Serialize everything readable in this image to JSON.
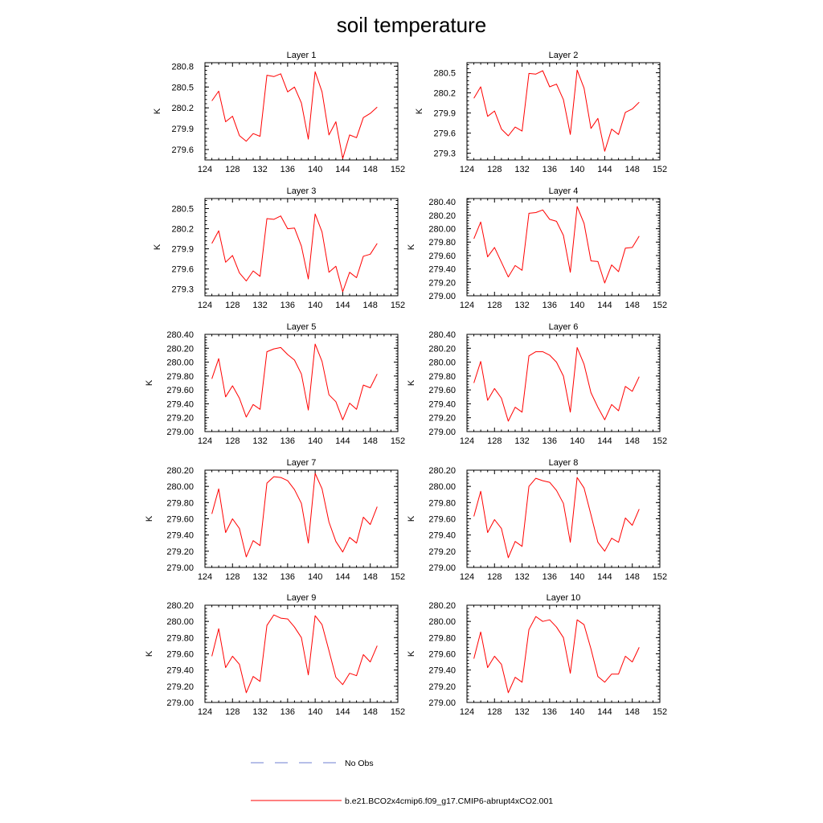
{
  "chart_data": {
    "type": "line",
    "title": "soil temperature",
    "xticks": [
      124,
      128,
      132,
      136,
      140,
      144,
      148,
      152
    ],
    "xlim": [
      124,
      152
    ],
    "x": [
      125,
      126,
      127,
      128,
      129,
      130,
      131,
      132,
      133,
      134,
      135,
      136,
      137,
      138,
      139,
      140,
      141,
      142,
      143,
      144,
      145,
      146,
      147,
      148,
      149
    ],
    "panels": [
      {
        "name": "Layer 1",
        "ylabel": "K",
        "ylim": [
          279.45,
          280.85
        ],
        "yticks": [
          279.6,
          279.9,
          280.2,
          280.5,
          280.8
        ],
        "ytick_labels": [
          "279.6",
          "279.9",
          "280.2",
          "280.5",
          "280.8"
        ],
        "values": [
          280.3,
          280.44,
          280.0,
          280.08,
          279.8,
          279.72,
          279.83,
          279.79,
          280.67,
          280.65,
          280.69,
          280.43,
          280.5,
          280.27,
          279.75,
          280.72,
          280.43,
          279.81,
          280.0,
          279.47,
          279.81,
          279.77,
          280.06,
          280.12,
          280.21
        ]
      },
      {
        "name": "Layer 2",
        "ylabel": "K",
        "ylim": [
          279.2,
          280.65
        ],
        "yticks": [
          279.3,
          279.6,
          279.9,
          280.2,
          280.5
        ],
        "ytick_labels": [
          "279.3",
          "279.6",
          "279.9",
          "280.2",
          "280.5"
        ],
        "values": [
          280.12,
          280.29,
          279.85,
          279.93,
          279.66,
          279.56,
          279.69,
          279.63,
          280.49,
          280.48,
          280.53,
          280.29,
          280.33,
          280.1,
          279.58,
          280.54,
          280.27,
          279.67,
          279.82,
          279.33,
          279.66,
          279.58,
          279.91,
          279.96,
          280.06
        ]
      },
      {
        "name": "Layer 3",
        "ylabel": "K",
        "ylim": [
          279.2,
          280.65
        ],
        "yticks": [
          279.3,
          279.6,
          279.9,
          280.2,
          280.5
        ],
        "ytick_labels": [
          "279.3",
          "279.6",
          "279.9",
          "280.2",
          "280.5"
        ],
        "values": [
          279.98,
          280.17,
          279.7,
          279.8,
          279.54,
          279.42,
          279.57,
          279.49,
          280.35,
          280.34,
          280.39,
          280.2,
          280.21,
          279.94,
          279.45,
          280.42,
          280.15,
          279.55,
          279.64,
          279.26,
          279.55,
          279.47,
          279.79,
          279.82,
          279.98
        ]
      },
      {
        "name": "Layer 4",
        "ylabel": "K",
        "ylim": [
          279.0,
          280.45
        ],
        "yticks": [
          279.0,
          279.2,
          279.4,
          279.6,
          279.8,
          280.0,
          280.2,
          280.4
        ],
        "ytick_labels": [
          "279.00",
          "279.20",
          "279.40",
          "279.60",
          "279.80",
          "280.00",
          "280.20",
          "280.40"
        ],
        "values": [
          279.85,
          280.1,
          279.58,
          279.72,
          279.5,
          279.28,
          279.45,
          279.38,
          280.23,
          280.24,
          280.28,
          280.14,
          280.11,
          279.9,
          279.35,
          280.33,
          280.08,
          279.52,
          279.51,
          279.19,
          279.46,
          279.36,
          279.71,
          279.72,
          279.89
        ]
      },
      {
        "name": "Layer 5",
        "ylabel": "K",
        "ylim": [
          279.0,
          280.4
        ],
        "yticks": [
          279.0,
          279.2,
          279.4,
          279.6,
          279.8,
          280.0,
          280.2,
          280.4
        ],
        "ytick_labels": [
          "279.00",
          "279.20",
          "279.40",
          "279.60",
          "279.80",
          "280.00",
          "280.20",
          "280.40"
        ],
        "values": [
          279.76,
          280.05,
          279.5,
          279.66,
          279.48,
          279.21,
          279.39,
          279.32,
          280.15,
          280.19,
          280.21,
          280.11,
          280.03,
          279.83,
          279.31,
          280.26,
          280.01,
          279.53,
          279.43,
          279.17,
          279.41,
          279.32,
          279.67,
          279.63,
          279.83
        ]
      },
      {
        "name": "Layer 6",
        "ylabel": "K",
        "ylim": [
          279.0,
          280.4
        ],
        "yticks": [
          279.0,
          279.2,
          279.4,
          279.6,
          279.8,
          280.0,
          280.2,
          280.4
        ],
        "ytick_labels": [
          "279.00",
          "279.20",
          "279.40",
          "279.60",
          "279.80",
          "280.00",
          "280.20",
          "280.40"
        ],
        "values": [
          279.7,
          280.01,
          279.45,
          279.62,
          279.48,
          279.15,
          279.35,
          279.28,
          280.09,
          280.15,
          280.15,
          280.1,
          280.0,
          279.8,
          279.28,
          280.21,
          279.97,
          279.56,
          279.35,
          279.17,
          279.39,
          279.3,
          279.65,
          279.58,
          279.79
        ]
      },
      {
        "name": "Layer 7",
        "ylabel": "K",
        "ylim": [
          279.0,
          280.2
        ],
        "yticks": [
          279.0,
          279.2,
          279.4,
          279.6,
          279.8,
          280.0,
          280.2
        ],
        "ytick_labels": [
          "279.00",
          "279.20",
          "279.40",
          "279.60",
          "279.80",
          "280.00",
          "280.20"
        ],
        "values": [
          279.66,
          279.97,
          279.43,
          279.6,
          279.48,
          279.13,
          279.33,
          279.27,
          280.04,
          280.12,
          280.11,
          280.07,
          279.96,
          279.79,
          279.3,
          280.16,
          279.97,
          279.56,
          279.32,
          279.19,
          279.37,
          279.3,
          279.62,
          279.53,
          279.75
        ]
      },
      {
        "name": "Layer 8",
        "ylabel": "K",
        "ylim": [
          279.0,
          280.2
        ],
        "yticks": [
          279.0,
          279.2,
          279.4,
          279.6,
          279.8,
          280.0,
          280.2
        ],
        "ytick_labels": [
          "279.00",
          "279.20",
          "279.40",
          "279.60",
          "279.80",
          "280.00",
          "280.20"
        ],
        "values": [
          279.63,
          279.94,
          279.43,
          279.59,
          279.48,
          279.12,
          279.32,
          279.26,
          280.0,
          280.1,
          280.07,
          280.05,
          279.95,
          279.79,
          279.31,
          280.11,
          279.98,
          279.65,
          279.31,
          279.2,
          279.36,
          279.31,
          279.61,
          279.52,
          279.72
        ]
      },
      {
        "name": "Layer 9",
        "ylabel": "K",
        "ylim": [
          279.0,
          280.2
        ],
        "yticks": [
          279.0,
          279.2,
          279.4,
          279.6,
          279.8,
          280.0,
          280.2
        ],
        "ytick_labels": [
          "279.00",
          "279.20",
          "279.40",
          "279.60",
          "279.80",
          "280.00",
          "280.20"
        ],
        "values": [
          279.57,
          279.91,
          279.43,
          279.57,
          279.47,
          279.12,
          279.32,
          279.26,
          279.95,
          280.08,
          280.04,
          280.03,
          279.93,
          279.8,
          279.34,
          280.07,
          279.96,
          279.64,
          279.31,
          279.22,
          279.36,
          279.33,
          279.59,
          279.5,
          279.7
        ]
      },
      {
        "name": "Layer 10",
        "ylabel": "K",
        "ylim": [
          279.0,
          280.2
        ],
        "yticks": [
          279.0,
          279.2,
          279.4,
          279.6,
          279.8,
          280.0,
          280.2
        ],
        "ytick_labels": [
          "279.00",
          "279.20",
          "279.40",
          "279.60",
          "279.80",
          "280.00",
          "280.20"
        ],
        "values": [
          279.54,
          279.87,
          279.43,
          279.57,
          279.47,
          279.12,
          279.31,
          279.25,
          279.9,
          280.06,
          280.0,
          280.02,
          279.93,
          279.8,
          279.36,
          280.02,
          279.96,
          279.66,
          279.32,
          279.25,
          279.35,
          279.35,
          279.57,
          279.5,
          279.68
        ]
      }
    ],
    "legend": [
      {
        "label": "No Obs",
        "color": "#6f7fd0",
        "style": "dashed"
      },
      {
        "label": "b.e21.BCO2x4cmip6.f09_g17.CMIP6-abrupt4xCO2.001",
        "color": "#ff0000",
        "style": "solid"
      }
    ],
    "colors": {
      "series": "#ff0000",
      "obs": "#6f7fd0",
      "axis": "#000000"
    }
  }
}
